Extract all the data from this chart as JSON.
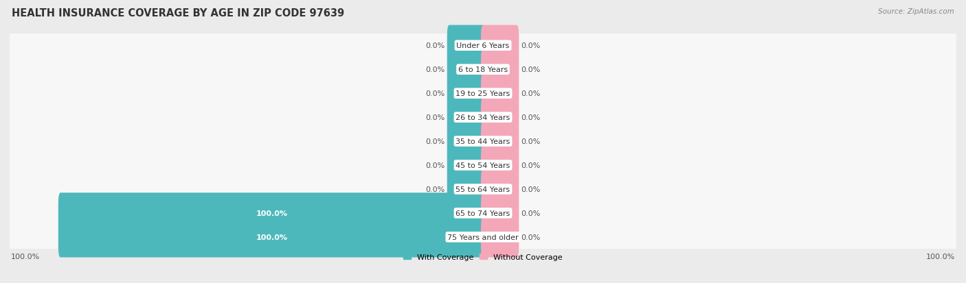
{
  "title": "HEALTH INSURANCE COVERAGE BY AGE IN ZIP CODE 97639",
  "source": "Source: ZipAtlas.com",
  "categories": [
    "Under 6 Years",
    "6 to 18 Years",
    "19 to 25 Years",
    "26 to 34 Years",
    "35 to 44 Years",
    "45 to 54 Years",
    "55 to 64 Years",
    "65 to 74 Years",
    "75 Years and older"
  ],
  "with_coverage": [
    0.0,
    0.0,
    0.0,
    0.0,
    0.0,
    0.0,
    0.0,
    100.0,
    100.0
  ],
  "without_coverage": [
    0.0,
    0.0,
    0.0,
    0.0,
    0.0,
    0.0,
    0.0,
    0.0,
    0.0
  ],
  "color_with": "#4db8bc",
  "color_without": "#f4a7b9",
  "bg_color": "#ebebeb",
  "bar_bg_color": "#f7f7f7",
  "title_fontsize": 10.5,
  "label_fontsize": 8,
  "category_fontsize": 8,
  "legend_fontsize": 8,
  "axis_label_fontsize": 8,
  "max_val": 100.0,
  "stub_pct": 8.0,
  "figsize": [
    14.06,
    4.14
  ],
  "dpi": 100
}
